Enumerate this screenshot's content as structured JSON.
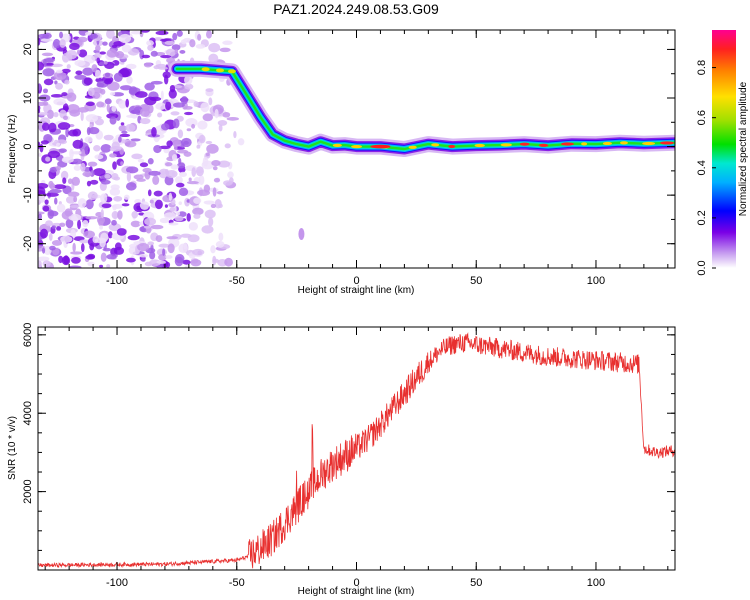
{
  "title": "PAZ1.2024.249.08.53.G09",
  "chart_data": [
    {
      "type": "heatmap",
      "xlabel": "Height of straight line (km)",
      "ylabel": "Frequency (Hz)",
      "xlim": [
        -133,
        133
      ],
      "ylim": [
        -25,
        24
      ],
      "xticks": [
        -100,
        -50,
        0,
        50,
        100
      ],
      "yticks": [
        -20,
        -10,
        0,
        10,
        20
      ],
      "ridge_x": [
        -75,
        -65,
        -52,
        -45,
        -40,
        -35,
        -30,
        -25,
        -20,
        -15,
        -10,
        -5,
        0,
        10,
        20,
        30,
        40,
        50,
        60,
        70,
        80,
        90,
        100,
        110,
        120,
        133
      ],
      "ridge_y": [
        16,
        16,
        15.5,
        10,
        6,
        2.5,
        1.2,
        0.5,
        0,
        1,
        0.2,
        0.3,
        0,
        0,
        -0.5,
        0.5,
        0,
        0.2,
        0.3,
        0.5,
        0.2,
        0.6,
        0.5,
        0.8,
        0.6,
        0.8
      ],
      "colorbar": {
        "label": "Normalized spectral amplitude",
        "range": [
          0,
          0.95
        ],
        "ticks": [
          "0.0",
          "0.2",
          "0.4",
          "0.6",
          "0.8"
        ]
      }
    },
    {
      "type": "line",
      "xlabel": "Height of straight line (km)",
      "ylabel": "SNR (10 * v/v)",
      "xlim": [
        -133,
        133
      ],
      "ylim": [
        0,
        6200
      ],
      "xticks": [
        -100,
        -50,
        0,
        50,
        100
      ],
      "yticks": [
        2000,
        4000,
        6000
      ],
      "color": "#e8302f",
      "trend_x": [
        -133,
        -80,
        -50,
        -45,
        -40,
        -35,
        -30,
        -25,
        -20,
        -15,
        -10,
        -5,
        0,
        5,
        10,
        15,
        20,
        25,
        30,
        35,
        40,
        45,
        50,
        55,
        60,
        70,
        80,
        90,
        100,
        110,
        118,
        120,
        125,
        133
      ],
      "trend_y": [
        120,
        150,
        250,
        350,
        550,
        800,
        1200,
        1600,
        2000,
        2400,
        2700,
        2900,
        3100,
        3350,
        3700,
        4100,
        4500,
        4900,
        5300,
        5600,
        5750,
        5800,
        5750,
        5700,
        5650,
        5550,
        5450,
        5400,
        5350,
        5300,
        5250,
        3100,
        3000,
        3050
      ]
    }
  ]
}
